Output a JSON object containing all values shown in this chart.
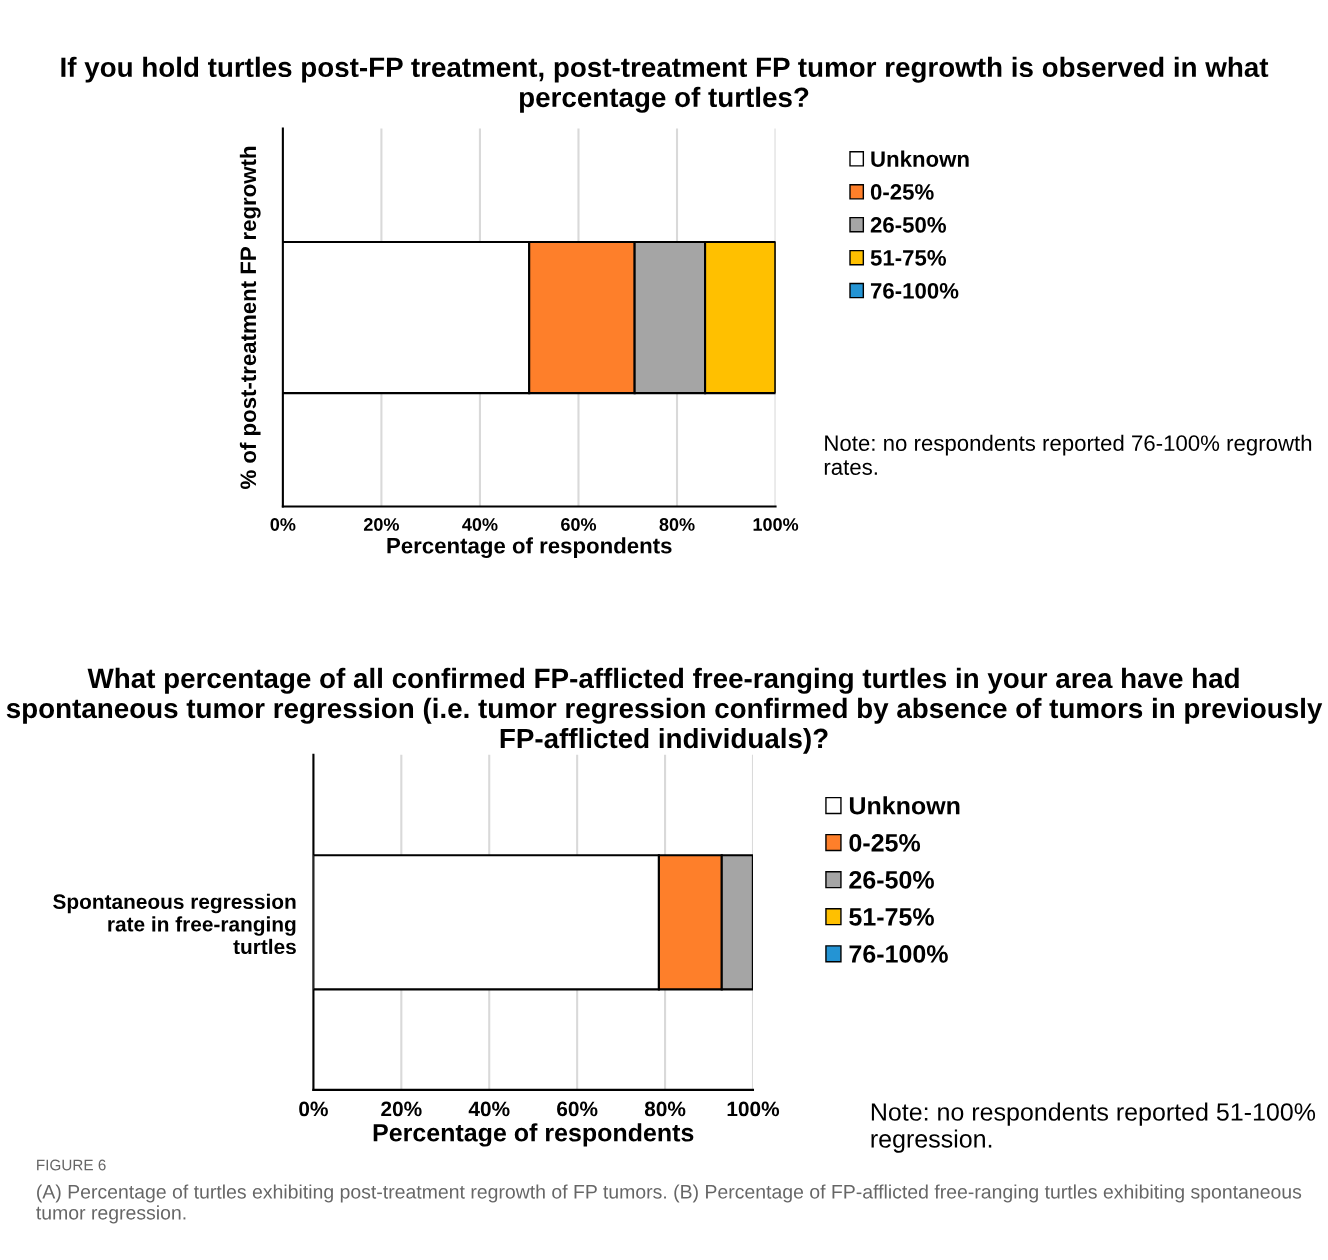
{
  "chart_data": [
    {
      "type": "bar",
      "orientation": "horizontal",
      "stacked": true,
      "title": "If you hold turtles post-FP treatment, post-treatment FP tumor regrowth is observed in what percentage of turtles?",
      "xlabel": "Percentage of respondents",
      "ylabel": "% of post-treatment FP regrowth",
      "categories": [
        null
      ],
      "series": [
        {
          "name": "Unknown",
          "color": "#ffffff",
          "values": [
            50
          ]
        },
        {
          "name": "0-25%",
          "color": "#fe7f2a",
          "values": [
            21.4
          ]
        },
        {
          "name": "26-50%",
          "color": "#a5a5a5",
          "values": [
            14.3
          ]
        },
        {
          "name": "51-75%",
          "color": "#ffc000",
          "values": [
            14.3
          ]
        },
        {
          "name": "76-100%",
          "color": "#2494d4",
          "values": [
            0
          ]
        }
      ],
      "xlim": [
        0,
        100
      ],
      "xticks": [
        {
          "value": 0,
          "label": "0%"
        },
        {
          "value": 20,
          "label": "20%"
        },
        {
          "value": 40,
          "label": "40%"
        },
        {
          "value": 60,
          "label": "60%"
        },
        {
          "value": 80,
          "label": "80%"
        },
        {
          "value": 100,
          "label": "100%"
        }
      ],
      "grid": "x",
      "legend": "right",
      "annotations": [
        "Note: no respondents reported 76-100% regrowth rates."
      ]
    },
    {
      "type": "bar",
      "orientation": "horizontal",
      "stacked": true,
      "title": "What percentage of all confirmed FP-afflicted free-ranging turtles in your area have had spontaneous tumor regression (i.e. tumor regression confirmed by absence of tumors in previously FP-afflicted individuals)?",
      "xlabel": "Percentage of respondents",
      "categories": [
        "Spontaneous regression\nrate in free-ranging\nturtles"
      ],
      "series": [
        {
          "name": "Unknown",
          "color": "#ffffff",
          "values": [
            78.6
          ]
        },
        {
          "name": "0-25%",
          "color": "#fe7f2a",
          "values": [
            14.3
          ]
        },
        {
          "name": "26-50%",
          "color": "#a5a5a5",
          "values": [
            7.1
          ]
        },
        {
          "name": "51-75%",
          "color": "#ffc000",
          "values": [
            0
          ]
        },
        {
          "name": "76-100%",
          "color": "#2494d4",
          "values": [
            0
          ]
        }
      ],
      "xlim": [
        0,
        100
      ],
      "xticks": [
        {
          "value": 0,
          "label": "0%"
        },
        {
          "value": 20,
          "label": "20%"
        },
        {
          "value": 40,
          "label": "40%"
        },
        {
          "value": 60,
          "label": "60%"
        },
        {
          "value": 80,
          "label": "80%"
        },
        {
          "value": 100,
          "label": "100%"
        }
      ],
      "grid": "x",
      "legend": "right",
      "annotations": [
        "Note: no respondents reported 51-100% regression.",
        "FIGURE 6",
        "(A) Percentage of turtles exhibiting post-treatment regrowth of FP tumors. (B) Percentage of FP-afflicted free-ranging turtles exhibiting spontaneous tumor regression."
      ]
    }
  ]
}
